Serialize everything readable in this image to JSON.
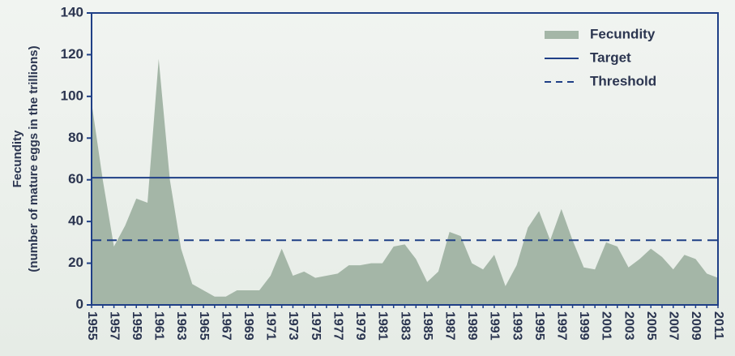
{
  "chart_data": {
    "type": "area",
    "y_label": [
      "Fecundity",
      "(number of mature eggs in the trillions)"
    ],
    "categories": [
      "1955",
      null,
      "1957",
      null,
      "1959",
      null,
      "1961",
      null,
      "1963",
      null,
      "1965",
      null,
      "1967",
      null,
      "1969",
      null,
      "1971",
      null,
      "1973",
      null,
      "1975",
      null,
      "1977",
      null,
      "1979",
      null,
      "1981",
      null,
      "1983",
      null,
      "1985",
      null,
      "1987",
      null,
      "1989",
      null,
      "1991",
      null,
      "1993",
      null,
      "1995",
      null,
      "1997",
      null,
      "1999",
      null,
      "2001",
      null,
      "2003",
      null,
      "2005",
      null,
      "2007",
      null,
      "2009",
      null,
      "2011"
    ],
    "series": [
      {
        "name": "Fecundity",
        "color": "#a4b6a7",
        "values": [
          97,
          60,
          28,
          38,
          51,
          49,
          118,
          60,
          27,
          10,
          7,
          4,
          4,
          7,
          7,
          7,
          14,
          27,
          14,
          16,
          13,
          14,
          15,
          19,
          19,
          20,
          20,
          28,
          29,
          22,
          11,
          16,
          35,
          33,
          20,
          17,
          24,
          9,
          19,
          37,
          45,
          31,
          46,
          31,
          18,
          17,
          30,
          28,
          18,
          22,
          27,
          23,
          17,
          24,
          22,
          15,
          13
        ]
      }
    ],
    "lines": [
      {
        "name": "Target",
        "value": 61,
        "color": "#1f3f86",
        "dashed": false
      },
      {
        "name": "Threshold",
        "value": 31,
        "color": "#1f3f86",
        "dashed": true
      }
    ],
    "ylim": [
      0,
      140
    ],
    "yticks": [
      0,
      20,
      40,
      60,
      80,
      100,
      120,
      140
    ],
    "legend": "top-right"
  }
}
